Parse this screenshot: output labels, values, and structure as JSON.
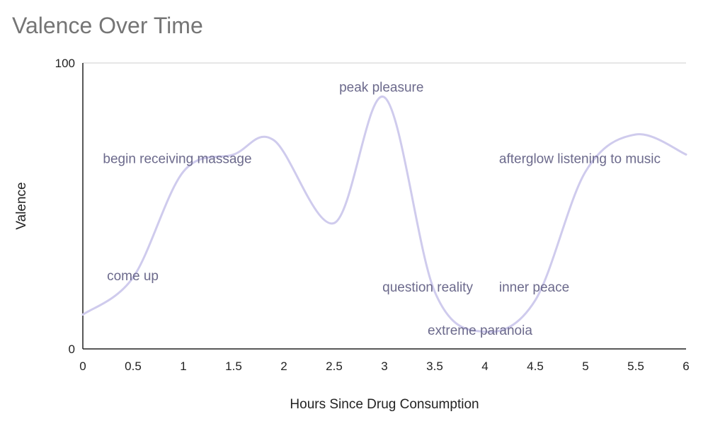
{
  "chart_data": {
    "type": "line",
    "title": "Valence Over Time",
    "xlabel": "Hours Since Drug Consumption",
    "ylabel": "Valence",
    "xlim": [
      0,
      6
    ],
    "ylim": [
      0,
      100
    ],
    "x_ticks": [
      "0",
      "0.5",
      "1",
      "1.5",
      "2",
      "2.5",
      "3",
      "3.5",
      "4",
      "4.5",
      "5",
      "5.5",
      "6"
    ],
    "y_ticks": [
      "0",
      "100"
    ],
    "grid": "horizontal",
    "line_color": "#cfcbed",
    "annotation_color": "#6c6a8c",
    "series": [
      {
        "x": [
          0,
          0.5,
          1,
          1.5,
          1.9,
          2.5,
          3,
          3.5,
          4,
          4.5,
          5,
          5.5,
          6
        ],
        "values": [
          12,
          25,
          62,
          68,
          73,
          44,
          88,
          20,
          6,
          17,
          62,
          75,
          68
        ]
      }
    ],
    "annotations": [
      {
        "text": "come up",
        "x": 0.24,
        "y": 24
      },
      {
        "text": "begin receiving massage",
        "x": 0.2,
        "y": 65
      },
      {
        "text": "peak pleasure",
        "x": 2.55,
        "y": 90
      },
      {
        "text": "question reality",
        "x": 2.98,
        "y": 20
      },
      {
        "text": "extreme paranoia",
        "x": 3.43,
        "y": 5
      },
      {
        "text": "inner peace",
        "x": 4.14,
        "y": 20
      },
      {
        "text": "afterglow listening to music",
        "x": 4.14,
        "y": 65
      }
    ]
  }
}
